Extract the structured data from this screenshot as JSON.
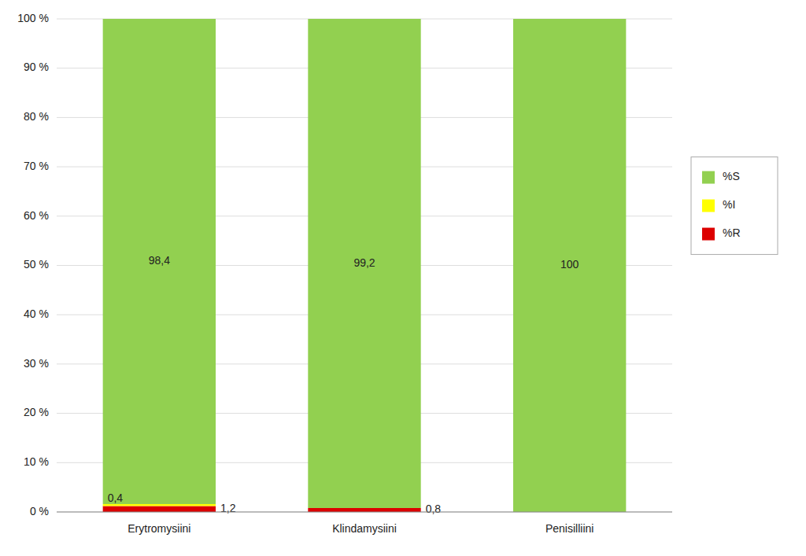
{
  "chart_data": {
    "type": "bar",
    "stacked": true,
    "categories": [
      "Erytromysiini",
      "Klindamysiini",
      "Penisilliini"
    ],
    "series": [
      {
        "name": "%R",
        "color": "#DC0000",
        "values": [
          1.2,
          0.8,
          0.0
        ],
        "value_labels": [
          "1,2",
          "0,8",
          null
        ]
      },
      {
        "name": "%I",
        "color": "#FFFF00",
        "values": [
          0.4,
          0.0,
          0.0
        ],
        "value_labels": [
          "0,4",
          null,
          null
        ]
      },
      {
        "name": "%S",
        "color": "#92D050",
        "values": [
          98.4,
          99.2,
          100.0
        ],
        "value_labels": [
          "98,4",
          "99,2",
          "100"
        ]
      }
    ],
    "ylim": [
      0,
      100
    ],
    "yticks": [
      {
        "value": 0,
        "label": "0 %"
      },
      {
        "value": 10,
        "label": "10 %"
      },
      {
        "value": 20,
        "label": "20 %"
      },
      {
        "value": 30,
        "label": "30 %"
      },
      {
        "value": 40,
        "label": "40 %"
      },
      {
        "value": 50,
        "label": "50 %"
      },
      {
        "value": 60,
        "label": "60 %"
      },
      {
        "value": 70,
        "label": "70 %"
      },
      {
        "value": 80,
        "label": "80 %"
      },
      {
        "value": 90,
        "label": "90 %"
      },
      {
        "value": 100,
        "label": "100 %"
      }
    ],
    "grid": true,
    "legend": "right",
    "data_labels": true
  }
}
